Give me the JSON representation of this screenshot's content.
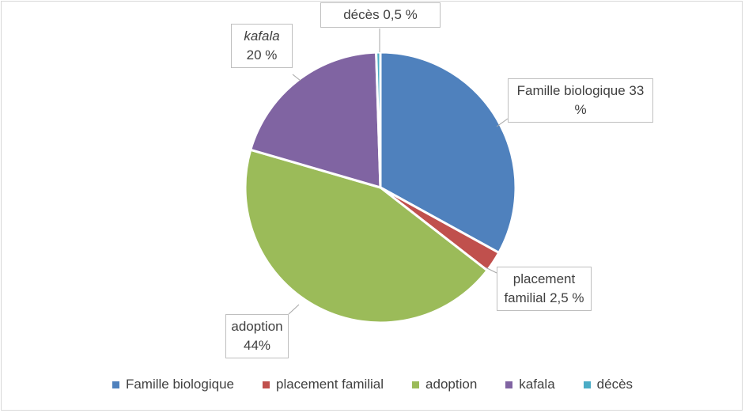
{
  "chart_data": {
    "type": "pie",
    "categories": [
      "Famille biologique",
      "placement familial",
      "adoption",
      "kafala",
      "décès"
    ],
    "values": [
      33,
      2.5,
      44,
      20,
      0.5
    ],
    "value_labels": [
      "33 %",
      "2,5 %",
      "44%",
      "20 %",
      "0,5 %"
    ],
    "colors": [
      "#4f81bd",
      "#c0504d",
      "#9bbb59",
      "#8064a2",
      "#4bacc6"
    ],
    "legend": "bottom"
  }
}
